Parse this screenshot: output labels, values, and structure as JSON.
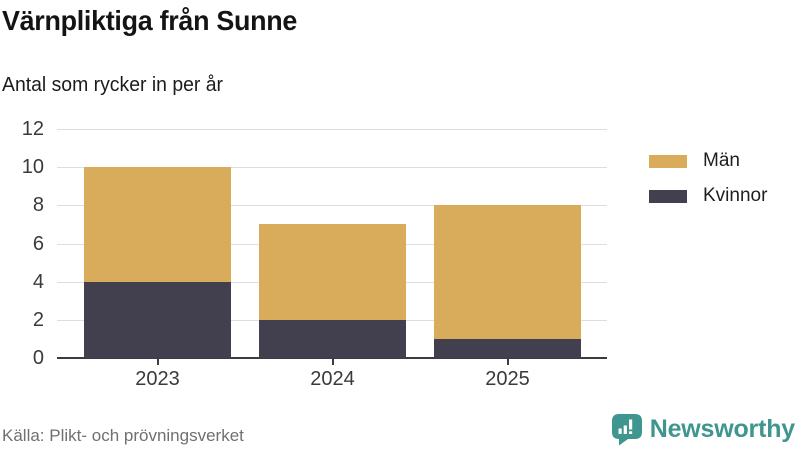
{
  "header": {
    "title": "Värnpliktiga från Sunne",
    "subtitle": "Antal som rycker in per år"
  },
  "chart_data": {
    "type": "bar",
    "stacked": true,
    "title": "Värnpliktiga från Sunne",
    "subtitle": "Antal som rycker in per år",
    "categories": [
      "2023",
      "2024",
      "2025"
    ],
    "series": [
      {
        "name": "Män",
        "color": "#d9ac5c",
        "values": [
          6,
          5,
          7
        ]
      },
      {
        "name": "Kvinnor",
        "color": "#423f4e",
        "values": [
          4,
          2,
          1
        ]
      }
    ],
    "stack_order_bottom_to_top": [
      "Kvinnor",
      "Män"
    ],
    "totals": [
      10,
      7,
      8
    ],
    "xlabel": "",
    "ylabel": "",
    "ylim": [
      0,
      12
    ],
    "yticks": [
      0,
      2,
      4,
      6,
      8,
      10,
      12
    ],
    "grid": true,
    "legend_position": "top-right"
  },
  "footer": {
    "source": "Källa: Plikt- och prövningsverket",
    "brand": "Newsworthy",
    "brand_color": "#3e968e",
    "brand_icon": "bar-chart-speech-bubble-icon"
  }
}
